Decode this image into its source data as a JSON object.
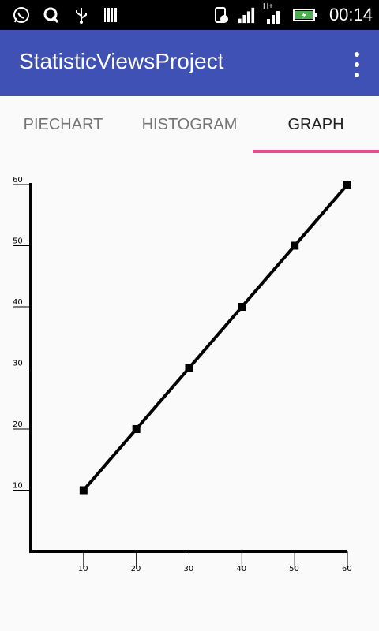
{
  "status_bar": {
    "time": "00:14",
    "network_label": "H+",
    "icons": [
      "whatsapp-icon",
      "q-app-icon",
      "usb-icon",
      "barcode-icon",
      "phone-sync-icon",
      "signal-icon",
      "signal-hplus-icon",
      "battery-charging-icon"
    ]
  },
  "app_bar": {
    "title": "StatisticViewsProject",
    "menu_icon": "more-vert-icon"
  },
  "tabs": [
    {
      "label": "PIECHART",
      "active": false
    },
    {
      "label": "HISTOGRAM",
      "active": false
    },
    {
      "label": "GRAPH",
      "active": true
    }
  ],
  "chart_data": {
    "type": "line",
    "title": "",
    "xlabel": "",
    "ylabel": "",
    "x": [
      10,
      20,
      30,
      40,
      50,
      60
    ],
    "series": [
      {
        "values": [
          10,
          20,
          30,
          40,
          50,
          60
        ]
      }
    ],
    "x_ticks": [
      10,
      20,
      30,
      40,
      50,
      60
    ],
    "y_ticks": [
      10,
      20,
      30,
      40,
      50,
      60
    ],
    "xlim": [
      0,
      60
    ],
    "ylim": [
      0,
      60
    ],
    "grid": false,
    "colors": {
      "line": "#000000",
      "marker": "#000000",
      "axis": "#000000"
    }
  }
}
